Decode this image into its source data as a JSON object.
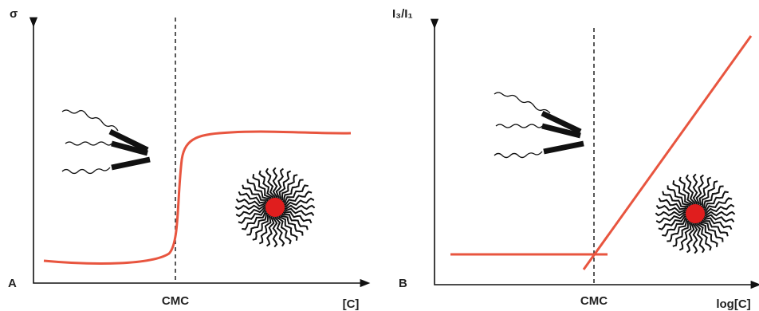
{
  "panels": [
    {
      "label": "A",
      "y_axis": "σ",
      "x_axis": "[C]",
      "marker": "CMC"
    },
    {
      "label": "B",
      "y_axis": "I₃/I₁",
      "x_axis": "log[C]",
      "marker": "CMC"
    }
  ]
}
